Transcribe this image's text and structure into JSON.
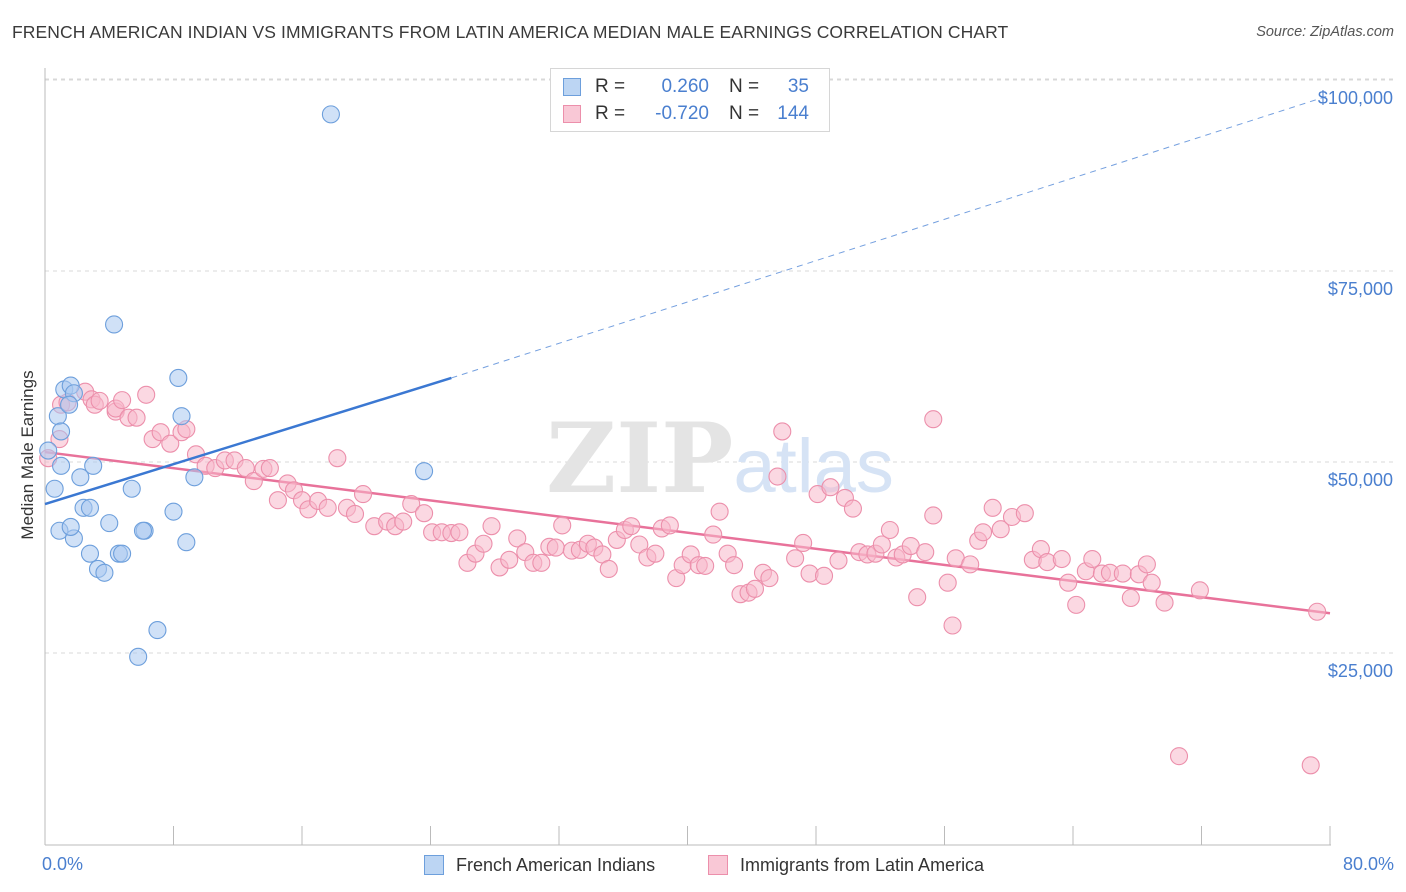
{
  "title": "FRENCH AMERICAN INDIAN VS IMMIGRANTS FROM LATIN AMERICA MEDIAN MALE EARNINGS CORRELATION CHART",
  "source": "Source: ZipAtlas.com",
  "colors": {
    "blue_fill": "#a9c8f0",
    "blue_stroke": "#6d9fdc",
    "blue_line": "#3b78d2",
    "pink_fill": "#f7b8cb",
    "pink_stroke": "#ec8fab",
    "pink_line": "#e8729a",
    "axis_text": "#4a7fcf",
    "grid": "#d8d8d8"
  },
  "legend": {
    "rows": [
      {
        "r_label": "R =",
        "r_value": "0.260",
        "n_label": "N =",
        "n_value": "35"
      },
      {
        "r_label": "R =",
        "r_value": "-0.720",
        "n_label": "N =",
        "n_value": "144"
      }
    ]
  },
  "bottom_legend": {
    "blue": "French American Indians",
    "pink": "Immigrants from Latin America"
  },
  "chart_data": {
    "type": "scatter",
    "ylabel": "Median Male Earnings",
    "xlim": [
      0,
      80
    ],
    "ylim": [
      0,
      102000
    ],
    "x_tick_labels": [
      "0.0%",
      "80.0%"
    ],
    "y_ticks": [
      {
        "value": 25000,
        "label": "$25,000"
      },
      {
        "value": 50000,
        "label": "$50,000"
      },
      {
        "value": 75000,
        "label": "$75,000"
      },
      {
        "value": 100000,
        "label": "$100,000"
      }
    ],
    "grid": true,
    "legend_position": "top-center",
    "watermark": "ZIPatlas",
    "series": [
      {
        "name": "French American Indians",
        "color": "blue",
        "R": 0.26,
        "N": 35,
        "trend": {
          "x0": 0,
          "y0": 44500,
          "x1": 25.3,
          "y1": 61000,
          "dashed_to_x": 80,
          "dashed_to_y": 98000
        },
        "points": [
          [
            0.2,
            51500
          ],
          [
            0.6,
            46500
          ],
          [
            0.9,
            41000
          ],
          [
            1.0,
            49500
          ],
          [
            0.8,
            56000
          ],
          [
            1.2,
            59500
          ],
          [
            1.0,
            54000
          ],
          [
            1.6,
            60000
          ],
          [
            1.8,
            59000
          ],
          [
            1.5,
            57500
          ],
          [
            1.8,
            40000
          ],
          [
            1.6,
            41500
          ],
          [
            2.2,
            48000
          ],
          [
            2.4,
            44000
          ],
          [
            2.8,
            44000
          ],
          [
            3.0,
            49500
          ],
          [
            2.8,
            38000
          ],
          [
            3.3,
            36000
          ],
          [
            3.7,
            35500
          ],
          [
            4.0,
            42000
          ],
          [
            4.6,
            38000
          ],
          [
            4.8,
            38000
          ],
          [
            5.4,
            46500
          ],
          [
            4.3,
            68000
          ],
          [
            6.2,
            41000
          ],
          [
            6.1,
            41000
          ],
          [
            8.0,
            43500
          ],
          [
            8.3,
            61000
          ],
          [
            8.5,
            56000
          ],
          [
            8.8,
            39500
          ],
          [
            9.3,
            48000
          ],
          [
            7.0,
            28000
          ],
          [
            5.8,
            24500
          ],
          [
            17.8,
            95500
          ],
          [
            23.6,
            48800
          ]
        ]
      },
      {
        "name": "Immigrants from Latin America",
        "color": "pink",
        "R": -0.72,
        "N": 144,
        "trend": {
          "x0": 0,
          "y0": 51300,
          "x1": 80,
          "y1": 30200
        },
        "points": [
          [
            0.2,
            50500
          ],
          [
            0.9,
            53000
          ],
          [
            1.0,
            57500
          ],
          [
            1.4,
            57800
          ],
          [
            2.5,
            59200
          ],
          [
            2.9,
            58200
          ],
          [
            3.1,
            57500
          ],
          [
            3.4,
            58000
          ],
          [
            4.4,
            56600
          ],
          [
            4.4,
            57000
          ],
          [
            4.8,
            58100
          ],
          [
            5.2,
            55800
          ],
          [
            5.7,
            55800
          ],
          [
            6.3,
            58800
          ],
          [
            6.7,
            53000
          ],
          [
            7.2,
            53900
          ],
          [
            7.8,
            52400
          ],
          [
            8.5,
            53900
          ],
          [
            8.8,
            54300
          ],
          [
            9.4,
            51000
          ],
          [
            10.0,
            49500
          ],
          [
            10.6,
            49200
          ],
          [
            11.2,
            50200
          ],
          [
            11.8,
            50200
          ],
          [
            12.5,
            49200
          ],
          [
            13.0,
            47500
          ],
          [
            13.6,
            49100
          ],
          [
            14.0,
            49200
          ],
          [
            14.5,
            45000
          ],
          [
            15.1,
            47200
          ],
          [
            15.5,
            46300
          ],
          [
            16.0,
            45000
          ],
          [
            16.4,
            43800
          ],
          [
            17.0,
            44900
          ],
          [
            17.6,
            44000
          ],
          [
            18.2,
            50500
          ],
          [
            18.8,
            44000
          ],
          [
            19.3,
            43200
          ],
          [
            19.8,
            45800
          ],
          [
            20.5,
            41600
          ],
          [
            21.3,
            42200
          ],
          [
            21.8,
            41600
          ],
          [
            22.3,
            42200
          ],
          [
            22.8,
            44500
          ],
          [
            23.6,
            43300
          ],
          [
            24.1,
            40800
          ],
          [
            24.7,
            40800
          ],
          [
            25.3,
            40700
          ],
          [
            25.8,
            40800
          ],
          [
            26.3,
            36800
          ],
          [
            26.8,
            38000
          ],
          [
            27.3,
            39300
          ],
          [
            27.8,
            41600
          ],
          [
            28.3,
            36200
          ],
          [
            28.9,
            37200
          ],
          [
            29.4,
            40000
          ],
          [
            29.9,
            38200
          ],
          [
            30.4,
            36800
          ],
          [
            30.9,
            36800
          ],
          [
            31.4,
            38900
          ],
          [
            31.8,
            38800
          ],
          [
            32.2,
            41700
          ],
          [
            32.8,
            38400
          ],
          [
            33.3,
            38500
          ],
          [
            33.8,
            39300
          ],
          [
            34.2,
            38800
          ],
          [
            34.7,
            37900
          ],
          [
            35.1,
            36000
          ],
          [
            35.6,
            39800
          ],
          [
            36.1,
            41100
          ],
          [
            36.5,
            41600
          ],
          [
            37.0,
            39200
          ],
          [
            37.5,
            37500
          ],
          [
            38.0,
            38000
          ],
          [
            38.4,
            41300
          ],
          [
            38.9,
            41700
          ],
          [
            39.3,
            34800
          ],
          [
            39.7,
            36500
          ],
          [
            40.2,
            37900
          ],
          [
            40.7,
            36500
          ],
          [
            41.1,
            36400
          ],
          [
            41.6,
            40500
          ],
          [
            42.0,
            43500
          ],
          [
            42.5,
            38000
          ],
          [
            42.9,
            36500
          ],
          [
            43.3,
            32700
          ],
          [
            43.8,
            32900
          ],
          [
            44.2,
            33400
          ],
          [
            44.7,
            35500
          ],
          [
            45.1,
            34800
          ],
          [
            45.6,
            48100
          ],
          [
            45.9,
            54000
          ],
          [
            46.7,
            37400
          ],
          [
            47.2,
            39400
          ],
          [
            47.6,
            35400
          ],
          [
            48.1,
            45800
          ],
          [
            48.5,
            35100
          ],
          [
            48.9,
            46700
          ],
          [
            49.4,
            37100
          ],
          [
            49.8,
            45300
          ],
          [
            50.3,
            43900
          ],
          [
            50.7,
            38200
          ],
          [
            51.2,
            37900
          ],
          [
            51.7,
            38000
          ],
          [
            52.1,
            39200
          ],
          [
            52.6,
            41100
          ],
          [
            53.0,
            37500
          ],
          [
            53.4,
            37900
          ],
          [
            53.9,
            39000
          ],
          [
            54.3,
            32300
          ],
          [
            54.8,
            38200
          ],
          [
            55.3,
            43000
          ],
          [
            55.3,
            55600
          ],
          [
            56.2,
            34200
          ],
          [
            56.5,
            28600
          ],
          [
            56.7,
            37400
          ],
          [
            57.6,
            36600
          ],
          [
            58.1,
            39700
          ],
          [
            58.4,
            40800
          ],
          [
            59.0,
            44000
          ],
          [
            59.5,
            41200
          ],
          [
            60.2,
            42800
          ],
          [
            61.0,
            43300
          ],
          [
            61.5,
            37200
          ],
          [
            62.0,
            38600
          ],
          [
            62.4,
            36900
          ],
          [
            63.3,
            37300
          ],
          [
            63.7,
            34200
          ],
          [
            64.2,
            31300
          ],
          [
            64.8,
            35700
          ],
          [
            65.2,
            37300
          ],
          [
            65.8,
            35400
          ],
          [
            66.3,
            35500
          ],
          [
            67.1,
            35400
          ],
          [
            67.6,
            32200
          ],
          [
            68.1,
            35300
          ],
          [
            68.6,
            36600
          ],
          [
            68.9,
            34200
          ],
          [
            69.7,
            31600
          ],
          [
            70.6,
            11500
          ],
          [
            71.9,
            33200
          ],
          [
            78.8,
            10300
          ],
          [
            79.2,
            30400
          ]
        ]
      }
    ]
  }
}
